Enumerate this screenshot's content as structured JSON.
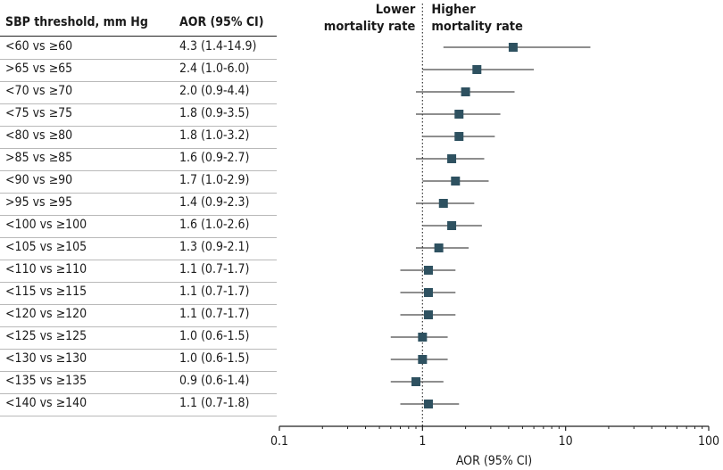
{
  "headers": {
    "threshold": "SBP threshold, mm Hg",
    "aor": "AOR (95% CI)"
  },
  "rows": [
    {
      "threshold": "<60 vs ≥60",
      "aor_text": "4.3 (1.4-14.9)"
    },
    {
      "threshold": ">65 vs ≥65",
      "aor_text": "2.4 (1.0-6.0)"
    },
    {
      "threshold": "<70 vs ≥70",
      "aor_text": "2.0 (0.9-4.4)"
    },
    {
      "threshold": "<75 vs ≥75",
      "aor_text": "1.8 (0.9-3.5)"
    },
    {
      "threshold": "<80 vs ≥80",
      "aor_text": "1.8 (1.0-3.2)"
    },
    {
      "threshold": ">85 vs ≥85",
      "aor_text": "1.6 (0.9-2.7)"
    },
    {
      "threshold": "<90 vs ≥90",
      "aor_text": "1.7 (1.0-2.9)"
    },
    {
      "threshold": ">95 vs ≥95",
      "aor_text": "1.4 (0.9-2.3)"
    },
    {
      "threshold": "<100 vs ≥100",
      "aor_text": "1.6 (1.0-2.6)"
    },
    {
      "threshold": "<105 vs ≥105",
      "aor_text": "1.3 (0.9-2.1)"
    },
    {
      "threshold": "<110 vs ≥110",
      "aor_text": "1.1 (0.7-1.7)"
    },
    {
      "threshold": "<115 vs ≥115",
      "aor_text": "1.1 (0.7-1.7)"
    },
    {
      "threshold": "<120 vs ≥120",
      "aor_text": "1.1 (0.7-1.7)"
    },
    {
      "threshold": "<125 vs ≥125",
      "aor_text": "1.0 (0.6-1.5)"
    },
    {
      "threshold": "<130 vs ≥130",
      "aor_text": "1.0 (0.6-1.5)"
    },
    {
      "threshold": "<135 vs ≥135",
      "aor_text": "0.9 (0.6-1.4)"
    },
    {
      "threshold": "<140 vs ≥140",
      "aor_text": "1.1 (0.7-1.8)"
    }
  ],
  "chart_data": {
    "type": "scatter",
    "subtype": "forest-plot",
    "xlabel": "AOR (95% CI)",
    "x_scale": "log",
    "xlim": [
      0.1,
      100
    ],
    "xticks": [
      "0.1",
      "1",
      "10",
      "100"
    ],
    "reference_line": 1,
    "reference_line_style": "dotted",
    "annotations": [
      "Lower mortality rate",
      "Higher mortality rate"
    ],
    "marker_color": "#2e5160",
    "categories": [
      "<60 vs ≥60",
      ">65 vs ≥65",
      "<70 vs ≥70",
      "<75 vs ≥75",
      "<80 vs ≥80",
      ">85 vs ≥85",
      "<90 vs ≥90",
      ">95 vs ≥95",
      "<100 vs ≥100",
      "<105 vs ≥105",
      "<110 vs ≥110",
      "<115 vs ≥115",
      "<120 vs ≥120",
      "<125 vs ≥125",
      "<130 vs ≥130",
      "<135 vs ≥135",
      "<140 vs ≥140"
    ],
    "points": [
      {
        "aor": 4.3,
        "lower": 1.4,
        "upper": 14.9
      },
      {
        "aor": 2.4,
        "lower": 1.0,
        "upper": 6.0
      },
      {
        "aor": 2.0,
        "lower": 0.9,
        "upper": 4.4
      },
      {
        "aor": 1.8,
        "lower": 0.9,
        "upper": 3.5
      },
      {
        "aor": 1.8,
        "lower": 1.0,
        "upper": 3.2
      },
      {
        "aor": 1.6,
        "lower": 0.9,
        "upper": 2.7
      },
      {
        "aor": 1.7,
        "lower": 1.0,
        "upper": 2.9
      },
      {
        "aor": 1.4,
        "lower": 0.9,
        "upper": 2.3
      },
      {
        "aor": 1.6,
        "lower": 1.0,
        "upper": 2.6
      },
      {
        "aor": 1.3,
        "lower": 0.9,
        "upper": 2.1
      },
      {
        "aor": 1.1,
        "lower": 0.7,
        "upper": 1.7
      },
      {
        "aor": 1.1,
        "lower": 0.7,
        "upper": 1.7
      },
      {
        "aor": 1.1,
        "lower": 0.7,
        "upper": 1.7
      },
      {
        "aor": 1.0,
        "lower": 0.6,
        "upper": 1.5
      },
      {
        "aor": 1.0,
        "lower": 0.6,
        "upper": 1.5
      },
      {
        "aor": 0.9,
        "lower": 0.6,
        "upper": 1.4
      },
      {
        "aor": 1.1,
        "lower": 0.7,
        "upper": 1.8
      }
    ]
  }
}
